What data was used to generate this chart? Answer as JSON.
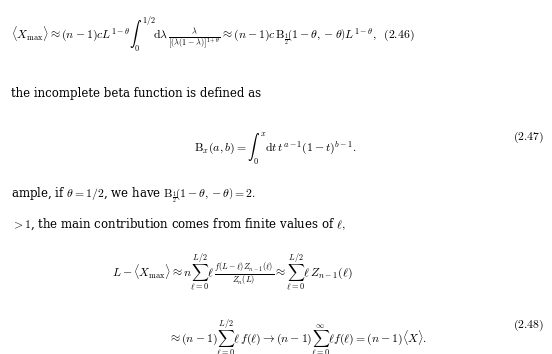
{
  "background_color": "#ffffff",
  "figsize": [
    5.52,
    3.54
  ],
  "dpi": 100
}
